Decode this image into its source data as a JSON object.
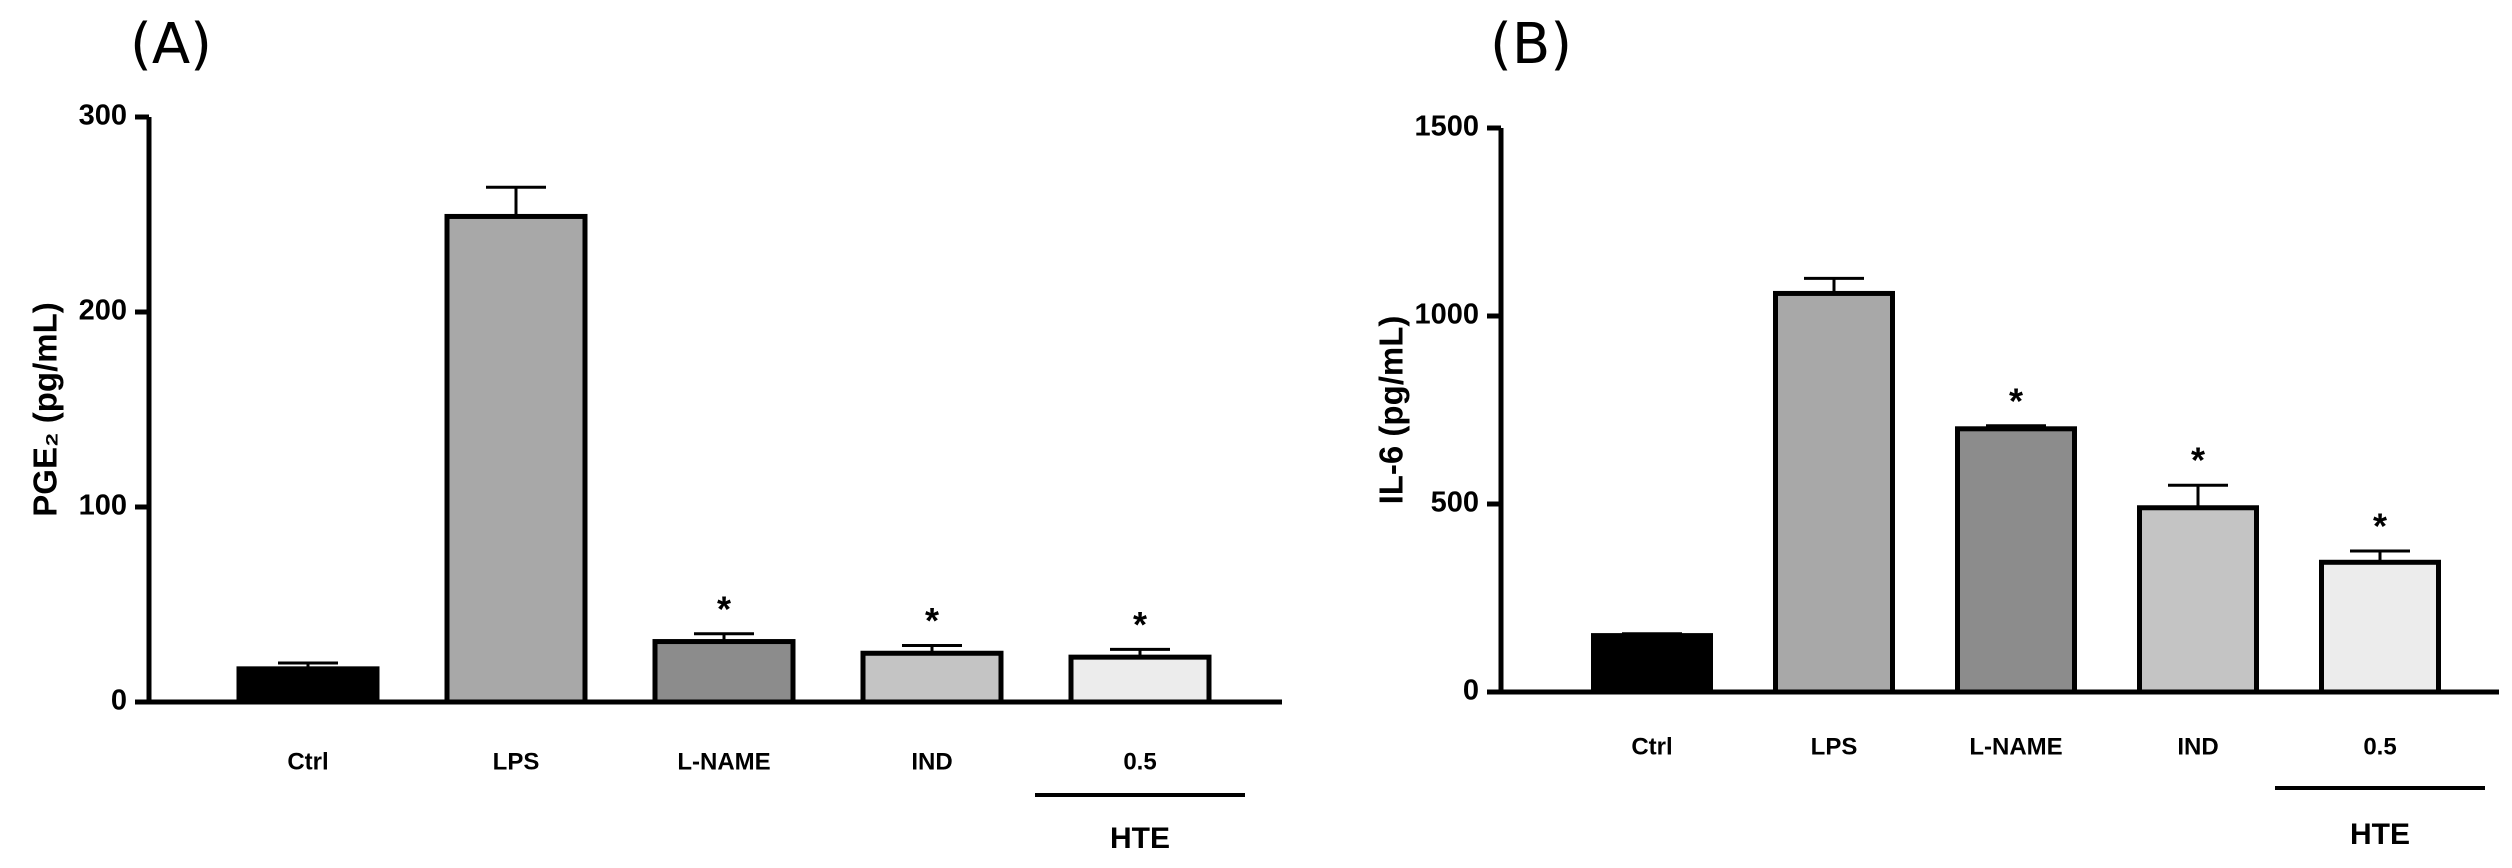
{
  "chart_data": [
    {
      "type": "bar",
      "panel_label": "(A)",
      "ylabel": "PGE₂ (pg/mL)",
      "categories": [
        "Ctrl",
        "LPS",
        "L-NAME",
        "IND",
        "0.5"
      ],
      "values": [
        17,
        249,
        31,
        25,
        23
      ],
      "errors": [
        3,
        15,
        4,
        4,
        4
      ],
      "colors": [
        "#000000",
        "#a8a8a8",
        "#8c8c8c",
        "#c4c4c4",
        "#ececec"
      ],
      "stars": [
        null,
        null,
        "*",
        "*",
        "*"
      ],
      "group_label": "HTE",
      "ylim": [
        0,
        300
      ],
      "yticks": [
        0,
        100,
        200,
        300
      ]
    },
    {
      "type": "bar",
      "panel_label": "(B)",
      "ylabel": "IL-6 (pg/mL)",
      "categories": [
        "Ctrl",
        "LPS",
        "L-NAME",
        "IND",
        "0.5"
      ],
      "values": [
        150,
        1060,
        700,
        490,
        345
      ],
      "errors": [
        5,
        40,
        8,
        60,
        30
      ],
      "colors": [
        "#000000",
        "#a8a8a8",
        "#8c8c8c",
        "#c4c4c4",
        "#ececec"
      ],
      "stars": [
        null,
        null,
        "*",
        "*",
        "*"
      ],
      "group_label": "HTE",
      "ylim": [
        0,
        1500
      ],
      "yticks": [
        0,
        500,
        1000,
        1500
      ]
    }
  ]
}
